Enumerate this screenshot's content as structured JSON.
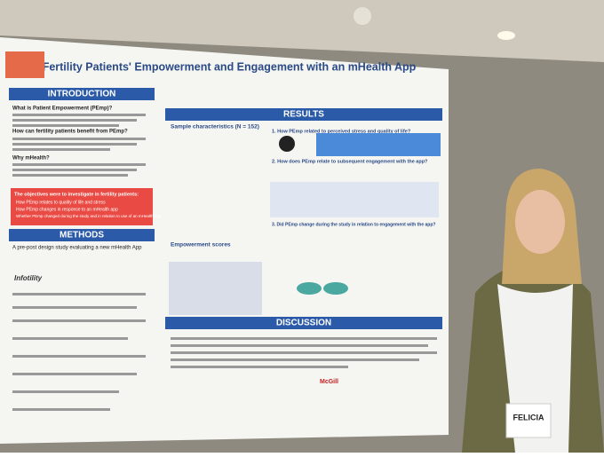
{
  "poster": {
    "title": "Fertility Patients' Empowerment and Engagement with an mHealth App",
    "sections": [
      "INTRODUCTION",
      "METHODS",
      "RESULTS",
      "DISCUSSION"
    ],
    "intro_headings": [
      "What is Patient Empowerment (PEmp)?",
      "How can fertility patients benefit from PEmp?",
      "Why mHealth?"
    ],
    "objectives_title": "The objectives were to investigate in fertility patients:",
    "objectives": [
      "How PEmp relates to quality of life and stress",
      "How PEmp changes in response to an mHealth app",
      "Whether PEmp changed during the study and in relation to use of an mHealth app"
    ],
    "methods_lead": "A pre-post design study evaluating a new mHealth App",
    "results_headings": [
      "Sample characteristics (N = 152)",
      "Empowerment scores",
      "1. How PEmp related to perceived stress and quality of life?",
      "2. How does PEmp relate to subsequent engagement with the app?",
      "3. Did PEmp change during the study in relation to engagement with the app?"
    ],
    "logos": [
      "Infotility",
      "McGill"
    ]
  },
  "badge": {
    "name": "FELICIA"
  }
}
